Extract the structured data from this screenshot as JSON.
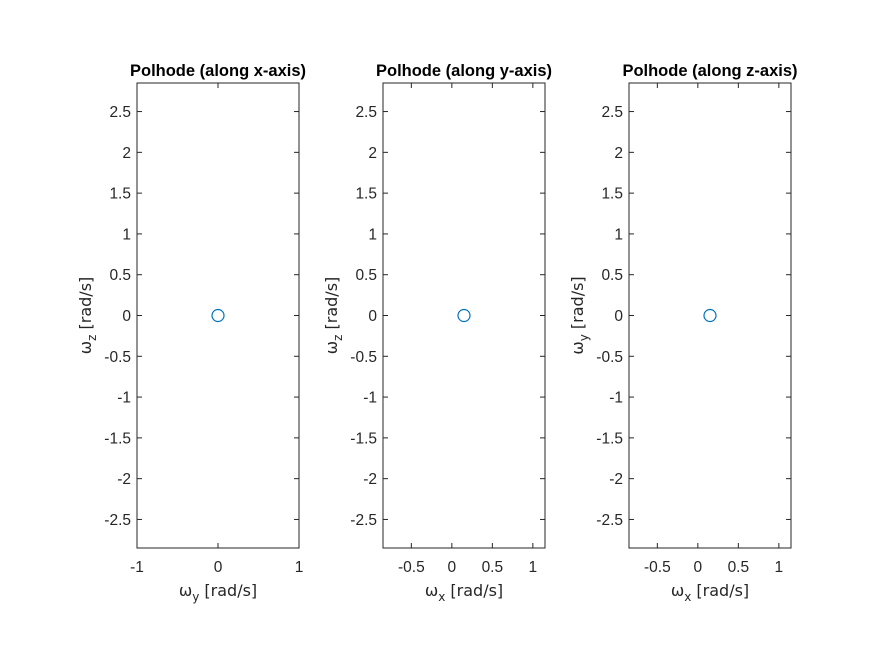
{
  "chart_data": [
    {
      "type": "scatter",
      "title": "Polhode (along x-axis)",
      "xlabel": {
        "symbol": "ω",
        "sub": "y",
        "unit": " [rad/s]"
      },
      "ylabel": {
        "symbol": "ω",
        "sub": "z",
        "unit": " [rad/s]"
      },
      "xlim": [
        -1,
        1
      ],
      "ylim": [
        -2.85,
        2.85
      ],
      "xticks": [
        -1,
        0,
        1
      ],
      "xtick_labels": [
        "-1",
        "0",
        "1"
      ],
      "yticks": [
        -2.5,
        -2,
        -1.5,
        -1,
        -0.5,
        0,
        0.5,
        1,
        1.5,
        2,
        2.5
      ],
      "ytick_labels": [
        "-2.5",
        "-2",
        "-1.5",
        "-1",
        "-0.5",
        "0",
        "0.5",
        "1",
        "1.5",
        "2",
        "2.5"
      ],
      "points": [
        {
          "x": 0,
          "y": 0
        }
      ],
      "marker": "circle",
      "color": "#0072bd",
      "grid": false
    },
    {
      "type": "scatter",
      "title": "Polhode (along y-axis)",
      "xlabel": {
        "symbol": "ω",
        "sub": "x",
        "unit": " [rad/s]"
      },
      "ylabel": {
        "symbol": "ω",
        "sub": "z",
        "unit": " [rad/s]"
      },
      "xlim": [
        -0.85,
        1.15
      ],
      "ylim": [
        -2.85,
        2.85
      ],
      "xticks": [
        -0.5,
        0,
        0.5,
        1
      ],
      "xtick_labels": [
        "-0.5",
        "0",
        "0.5",
        "1"
      ],
      "yticks": [
        -2.5,
        -2,
        -1.5,
        -1,
        -0.5,
        0,
        0.5,
        1,
        1.5,
        2,
        2.5
      ],
      "ytick_labels": [
        "-2.5",
        "-2",
        "-1.5",
        "-1",
        "-0.5",
        "0",
        "0.5",
        "1",
        "1.5",
        "2",
        "2.5"
      ],
      "points": [
        {
          "x": 0.15,
          "y": 0
        }
      ],
      "marker": "circle",
      "color": "#0072bd",
      "grid": false
    },
    {
      "type": "scatter",
      "title": "Polhode (along z-axis)",
      "xlabel": {
        "symbol": "ω",
        "sub": "x",
        "unit": " [rad/s]"
      },
      "ylabel": {
        "symbol": "ω",
        "sub": "y",
        "unit": " [rad/s]"
      },
      "xlim": [
        -0.85,
        1.15
      ],
      "ylim": [
        -2.85,
        2.85
      ],
      "xticks": [
        -0.5,
        0,
        0.5,
        1
      ],
      "xtick_labels": [
        "-0.5",
        "0",
        "0.5",
        "1"
      ],
      "yticks": [
        -2.5,
        -2,
        -1.5,
        -1,
        -0.5,
        0,
        0.5,
        1,
        1.5,
        2,
        2.5
      ],
      "ytick_labels": [
        "-2.5",
        "-2",
        "-1.5",
        "-1",
        "-0.5",
        "0",
        "0.5",
        "1",
        "1.5",
        "2",
        "2.5"
      ],
      "points": [
        {
          "x": 0.15,
          "y": 0
        }
      ],
      "marker": "circle",
      "color": "#0072bd",
      "grid": false
    }
  ]
}
